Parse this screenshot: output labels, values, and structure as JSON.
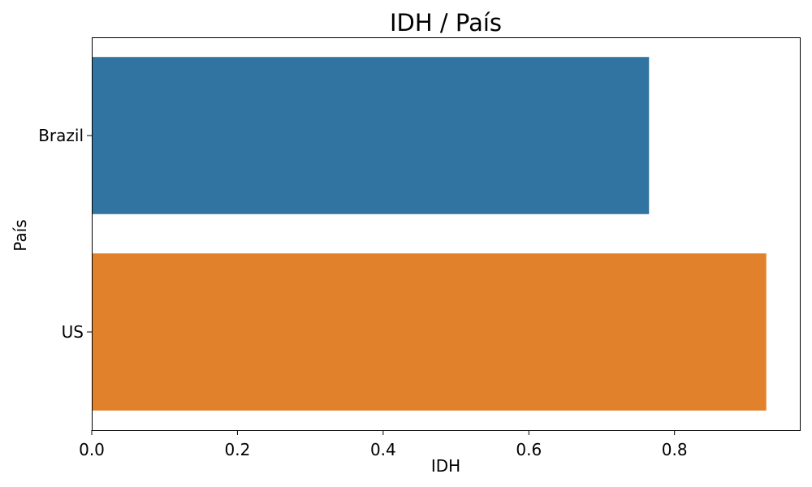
{
  "chart_data": {
    "type": "bar",
    "orientation": "horizontal",
    "title": "IDH / País",
    "xlabel": "IDH",
    "ylabel": "País",
    "categories": [
      "Brazil",
      "US"
    ],
    "values": [
      0.765,
      0.926
    ],
    "colors": [
      "#3274a1",
      "#e1812c"
    ],
    "xlim": [
      0,
      0.972
    ],
    "xticks": [
      0.0,
      0.2,
      0.4,
      0.6,
      0.8
    ],
    "xtick_labels": [
      "0.0",
      "0.2",
      "0.4",
      "0.6",
      "0.8"
    ],
    "grid": false,
    "legend": "none"
  }
}
